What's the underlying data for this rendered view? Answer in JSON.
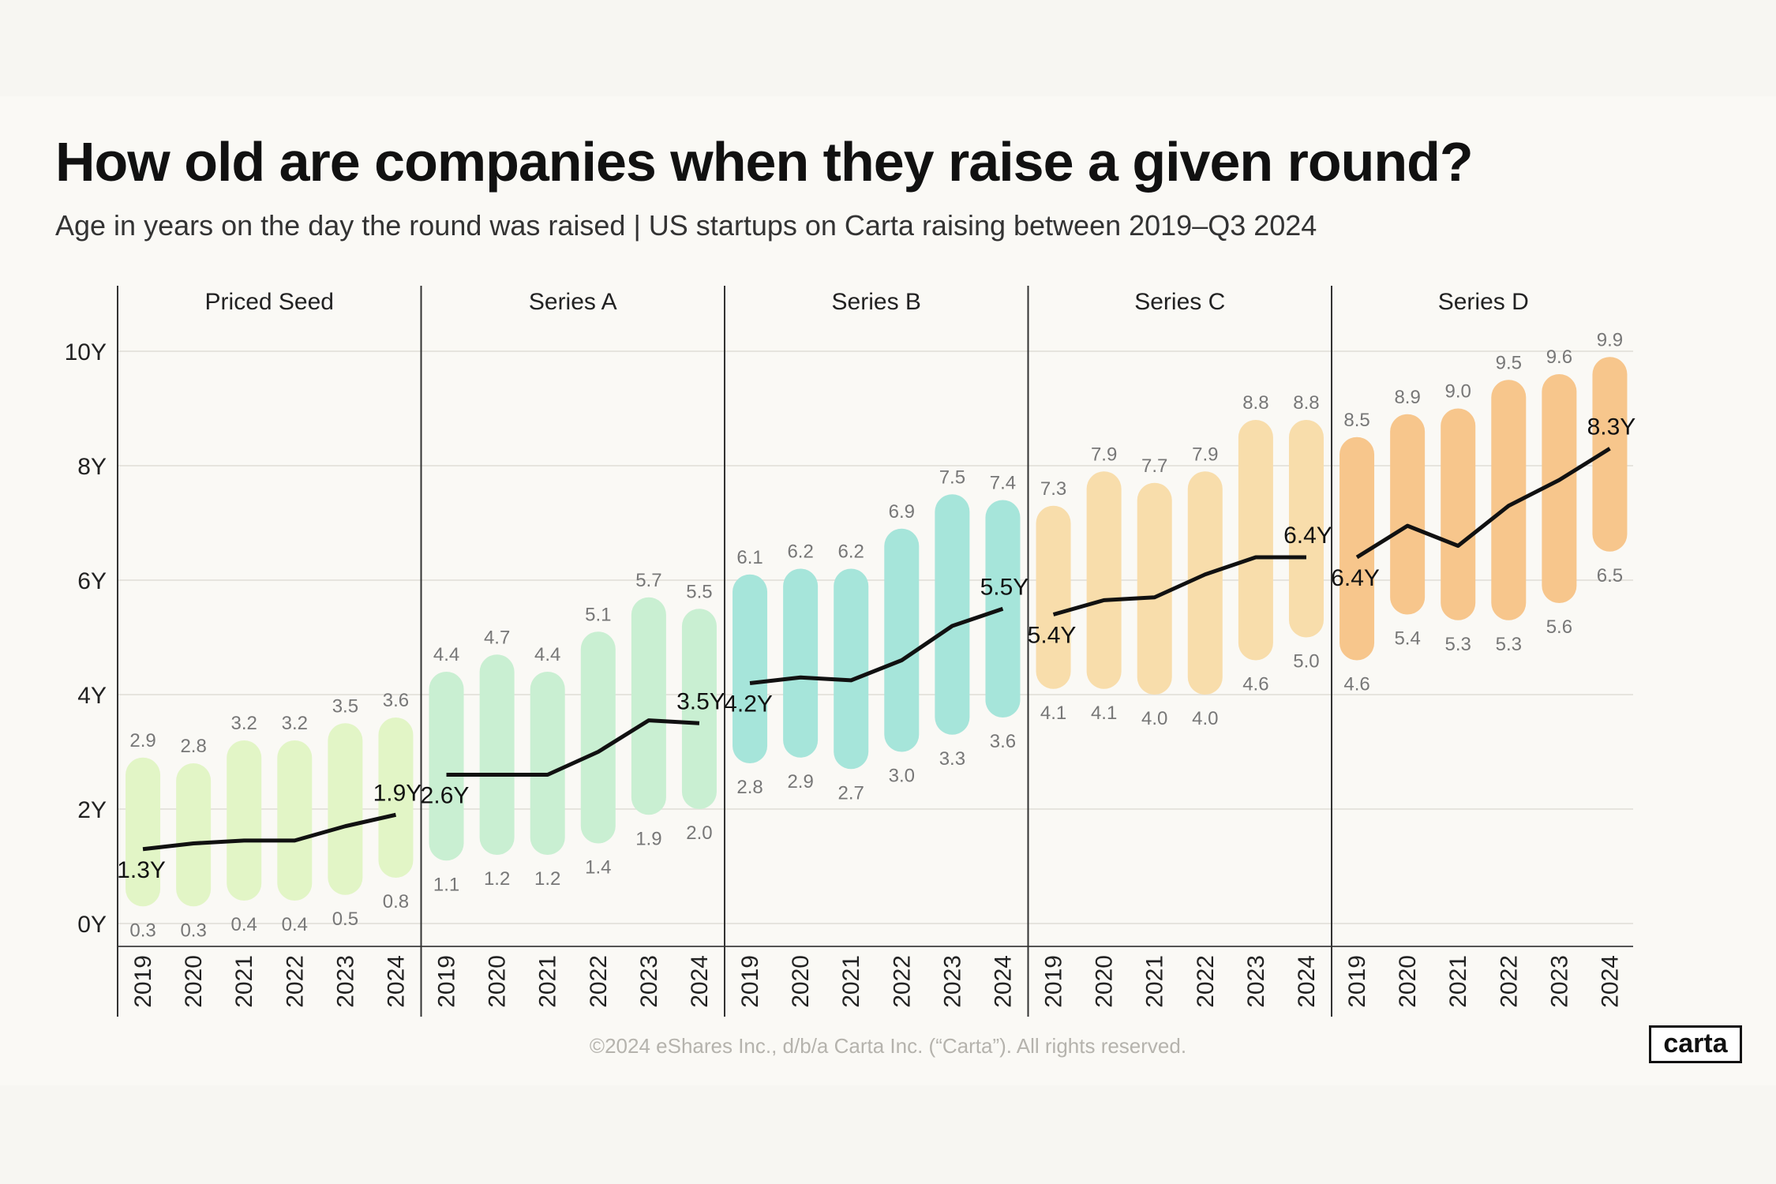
{
  "title": "How old are companies when they raise a given round?",
  "subtitle": "Age in years on the day the round was raised | US startups on Carta raising between 2019–Q3 2024",
  "footer": "©2024 eShares Inc., d/b/a Carta Inc. (“Carta”). All rights reserved.",
  "logo": "carta",
  "chart_data": {
    "type": "range-bar with median line (small multiples)",
    "y_ticks": [
      "0Y",
      "2Y",
      "4Y",
      "6Y",
      "8Y",
      "10Y"
    ],
    "ylim": [
      0,
      10
    ],
    "grid": true,
    "years": [
      "2019",
      "2020",
      "2021",
      "2022",
      "2023",
      "2024"
    ],
    "panels": [
      {
        "name": "Priced Seed",
        "color": "#e2f5c6",
        "low": [
          0.3,
          0.3,
          0.4,
          0.4,
          0.5,
          0.8
        ],
        "high": [
          2.9,
          2.8,
          3.2,
          3.2,
          3.5,
          3.6
        ],
        "median": [
          1.3,
          1.4,
          1.45,
          1.45,
          1.7,
          1.9
        ],
        "median_labels": [
          "1.3Y",
          "1.9Y"
        ]
      },
      {
        "name": "Series A",
        "color": "#c9efd2",
        "low": [
          1.1,
          1.2,
          1.2,
          1.4,
          1.9,
          2.0
        ],
        "high": [
          4.4,
          4.7,
          4.4,
          5.1,
          5.7,
          5.5
        ],
        "median": [
          2.6,
          2.6,
          2.6,
          3.0,
          3.55,
          3.5
        ],
        "median_labels": [
          "2.6Y",
          "3.5Y"
        ]
      },
      {
        "name": "Series B",
        "color": "#a6e5da",
        "low": [
          2.8,
          2.9,
          2.7,
          3.0,
          3.3,
          3.6
        ],
        "high": [
          6.1,
          6.2,
          6.2,
          6.9,
          7.5,
          7.4
        ],
        "median": [
          4.2,
          4.3,
          4.25,
          4.6,
          5.2,
          5.5
        ],
        "median_labels": [
          "4.2Y",
          "5.5Y"
        ]
      },
      {
        "name": "Series C",
        "color": "#f8ddab",
        "low": [
          4.1,
          4.1,
          4.0,
          4.0,
          4.6,
          5.0
        ],
        "high": [
          7.3,
          7.9,
          7.7,
          7.9,
          8.8,
          8.8
        ],
        "median": [
          5.4,
          5.65,
          5.7,
          6.1,
          6.4,
          6.4
        ],
        "median_labels": [
          "5.4Y",
          "6.4Y"
        ]
      },
      {
        "name": "Series D",
        "color": "#f7c68c",
        "low": [
          4.6,
          5.4,
          5.3,
          5.3,
          5.6,
          6.5
        ],
        "high": [
          8.5,
          8.9,
          9.0,
          9.5,
          9.6,
          9.9
        ],
        "median": [
          6.4,
          6.95,
          6.6,
          7.3,
          7.75,
          8.3
        ],
        "median_labels": [
          "6.4Y",
          "8.3Y"
        ]
      }
    ]
  }
}
